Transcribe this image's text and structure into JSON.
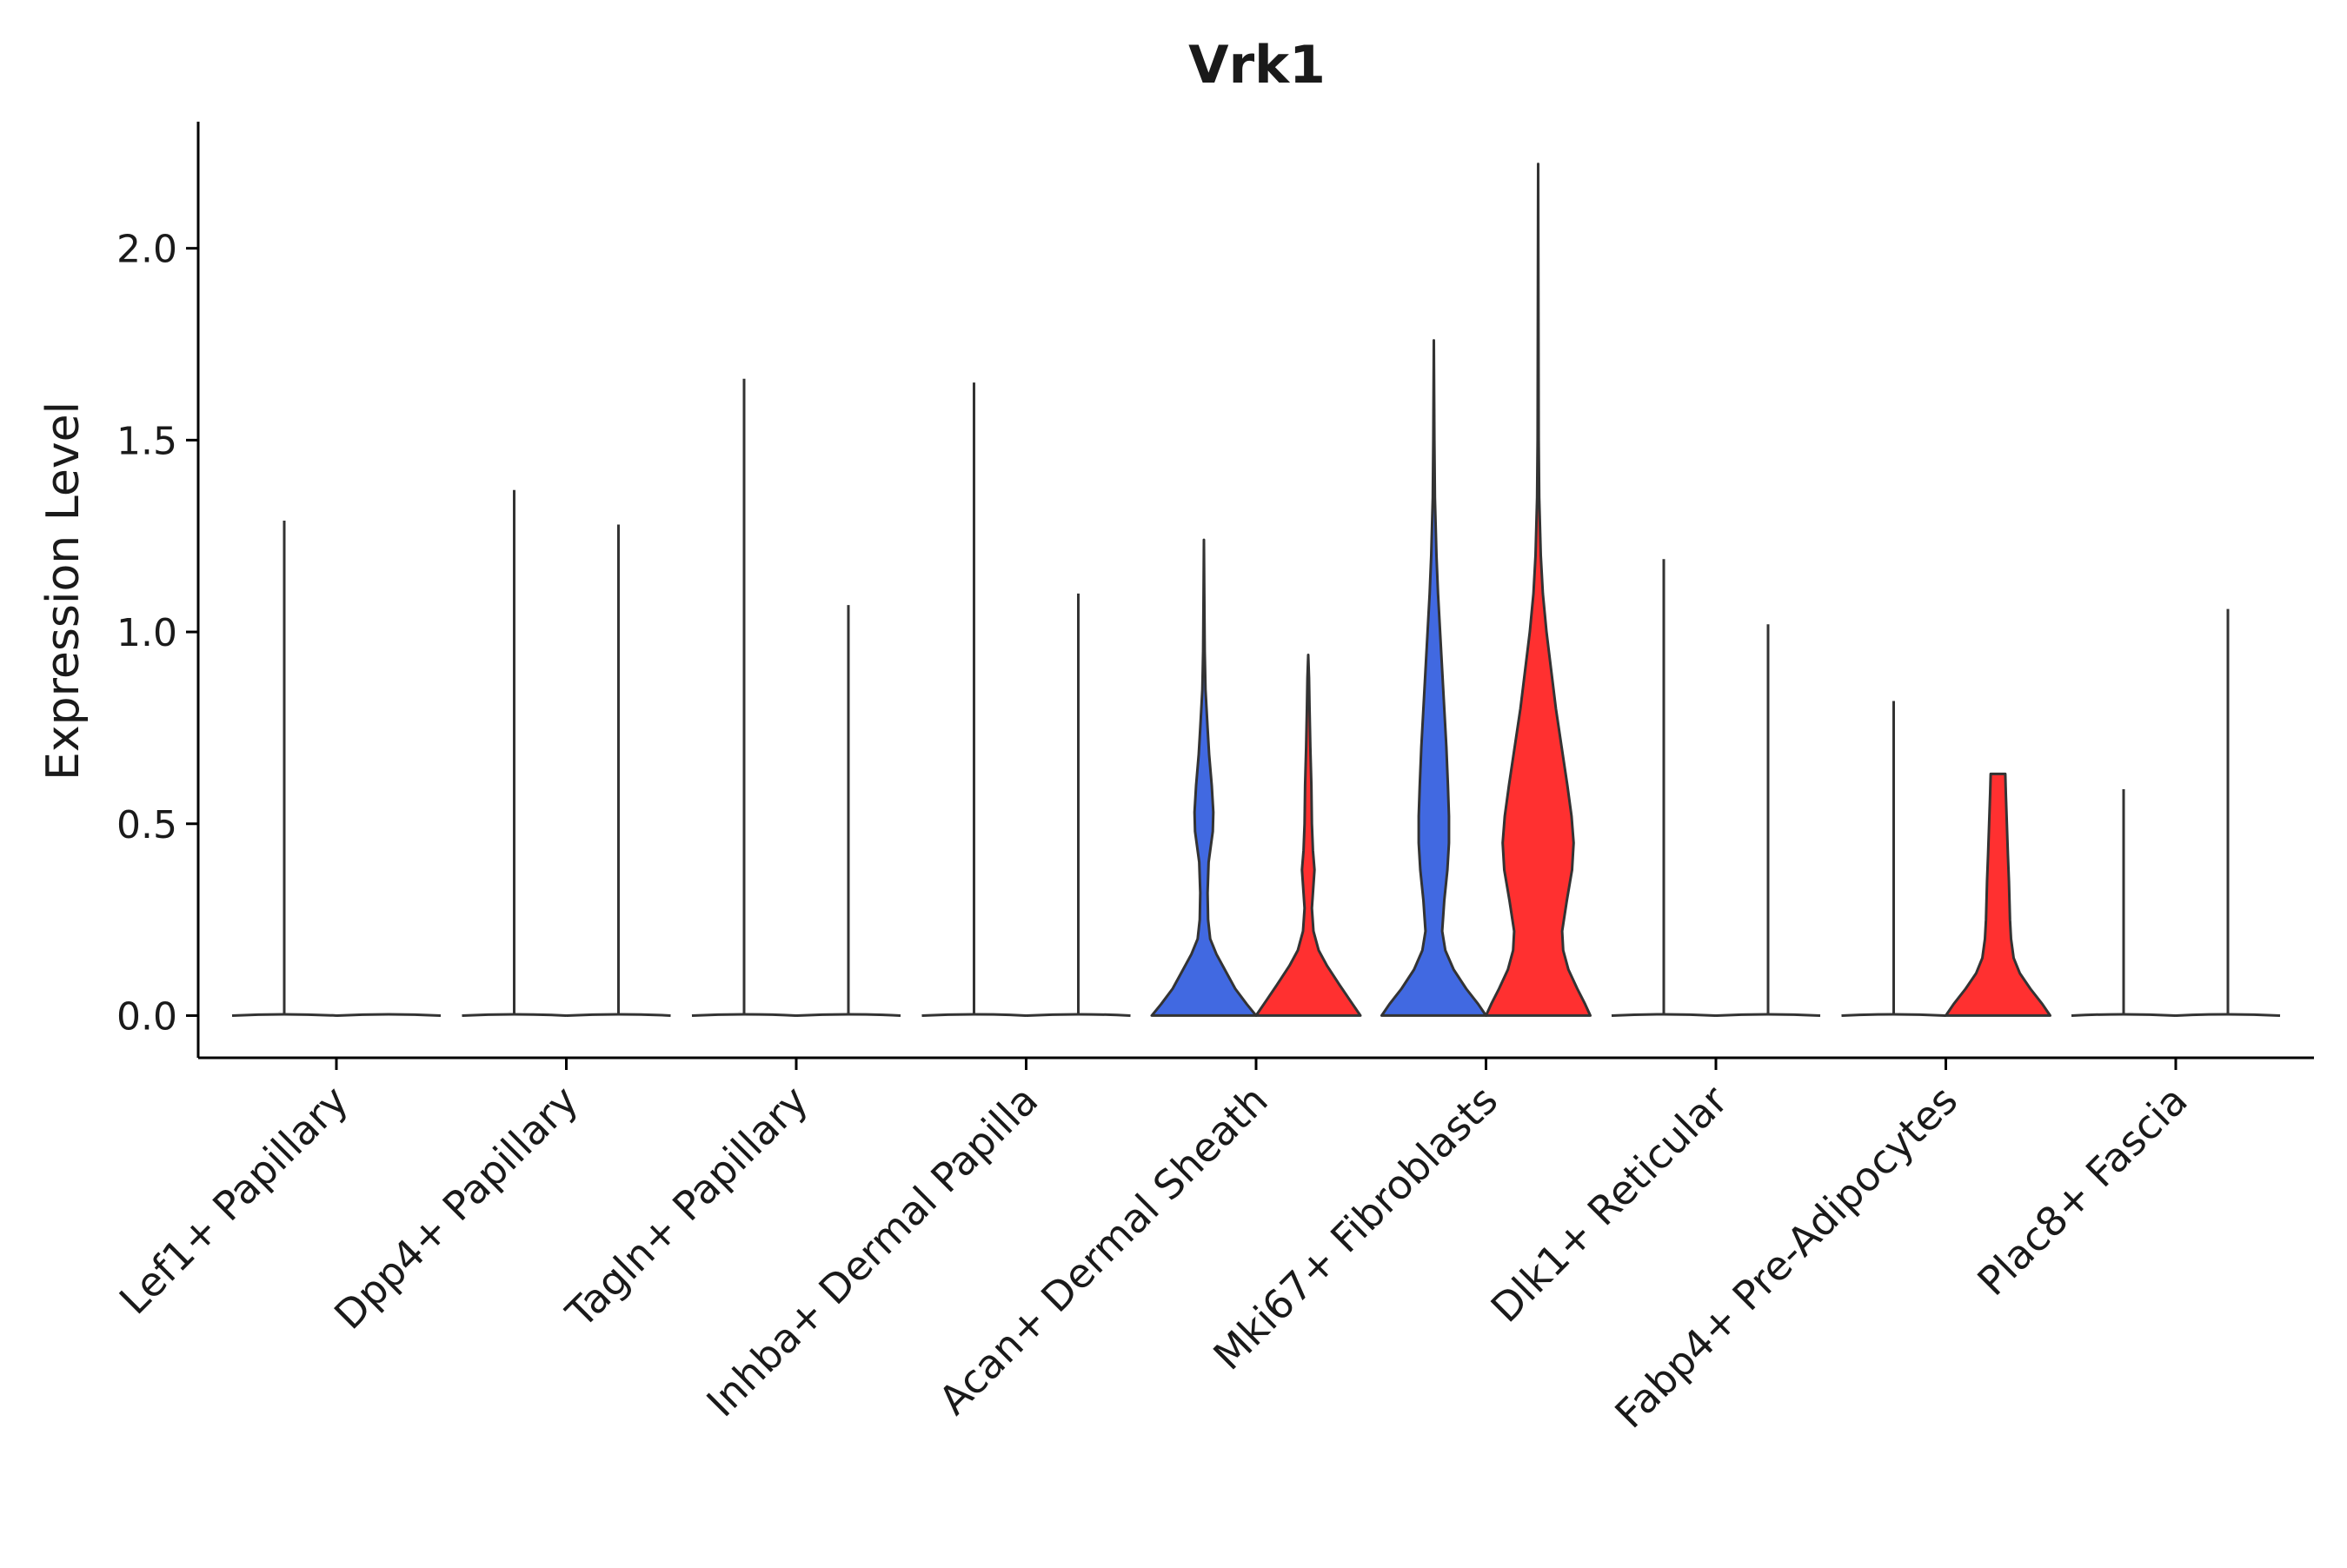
{
  "chart_data": {
    "type": "violin",
    "title": "Vrk1",
    "xlabel": "",
    "ylabel": "Expression Level",
    "ylim": [
      -0.11,
      2.33
    ],
    "yticks": [
      0.0,
      0.5,
      1.0,
      1.5,
      2.0
    ],
    "ytick_labels": [
      "0.0",
      "0.5",
      "1.0",
      "1.5",
      "2.0"
    ],
    "grid": false,
    "legend": "none",
    "colors": {
      "groupA": "#4169E1",
      "groupB": "#FF3030",
      "outline": "#333333",
      "flat": "#333333"
    },
    "categories": [
      "Lef1+ Papillary",
      "Dpp4+ Papillary",
      "Tagln+ Papillary",
      "Inhba+ Dermal Papilla",
      "Acan+ Dermal Sheath",
      "Mki67+ Fibroblasts",
      "Dlk1+ Reticular",
      "Fabp4+ Pre-Adipocytes",
      "Plac8+ Fascia"
    ],
    "violins": [
      {
        "category": 0,
        "side": "left",
        "max": 0.0,
        "fill": "none",
        "spike": 1.29,
        "profile": []
      },
      {
        "category": 0,
        "side": "right",
        "max": 0.0,
        "fill": "none",
        "spike": null,
        "profile": []
      },
      {
        "category": 1,
        "side": "left",
        "max": 0.0,
        "fill": "none",
        "spike": 1.37,
        "profile": []
      },
      {
        "category": 1,
        "side": "right",
        "max": 0.0,
        "fill": "none",
        "spike": 1.28,
        "profile": []
      },
      {
        "category": 2,
        "side": "left",
        "max": 0.0,
        "fill": "none",
        "spike": 1.66,
        "profile": []
      },
      {
        "category": 2,
        "side": "right",
        "max": 0.0,
        "fill": "none",
        "spike": 1.07,
        "profile": []
      },
      {
        "category": 3,
        "side": "left",
        "max": 0.0,
        "fill": "none",
        "spike": 1.65,
        "profile": []
      },
      {
        "category": 3,
        "side": "right",
        "max": 0.0,
        "fill": "none",
        "spike": 1.1,
        "profile": []
      },
      {
        "category": 4,
        "side": "left",
        "max": 1.24,
        "fill": "groupA",
        "spike": null,
        "profile": [
          [
            0.0,
            1.0
          ],
          [
            0.03,
            0.82
          ],
          [
            0.07,
            0.6
          ],
          [
            0.12,
            0.4
          ],
          [
            0.16,
            0.24
          ],
          [
            0.2,
            0.12
          ],
          [
            0.25,
            0.08
          ],
          [
            0.32,
            0.07
          ],
          [
            0.4,
            0.09
          ],
          [
            0.48,
            0.17
          ],
          [
            0.53,
            0.18
          ],
          [
            0.6,
            0.15
          ],
          [
            0.68,
            0.1
          ],
          [
            0.75,
            0.07
          ],
          [
            0.85,
            0.03
          ],
          [
            0.95,
            0.015
          ],
          [
            1.1,
            0.007
          ],
          [
            1.24,
            0.0
          ]
        ]
      },
      {
        "category": 4,
        "side": "right",
        "max": 0.94,
        "fill": "groupB",
        "spike": null,
        "profile": [
          [
            0.0,
            1.0
          ],
          [
            0.04,
            0.8
          ],
          [
            0.08,
            0.6
          ],
          [
            0.13,
            0.36
          ],
          [
            0.17,
            0.2
          ],
          [
            0.22,
            0.1
          ],
          [
            0.28,
            0.07
          ],
          [
            0.34,
            0.1
          ],
          [
            0.38,
            0.12
          ],
          [
            0.43,
            0.09
          ],
          [
            0.5,
            0.07
          ],
          [
            0.6,
            0.06
          ],
          [
            0.7,
            0.04
          ],
          [
            0.8,
            0.025
          ],
          [
            0.88,
            0.015
          ],
          [
            0.94,
            0.0
          ]
        ]
      },
      {
        "category": 5,
        "side": "left",
        "max": 1.76,
        "fill": "groupA",
        "spike": null,
        "profile": [
          [
            0.0,
            1.0
          ],
          [
            0.03,
            0.85
          ],
          [
            0.07,
            0.62
          ],
          [
            0.12,
            0.38
          ],
          [
            0.17,
            0.22
          ],
          [
            0.22,
            0.16
          ],
          [
            0.3,
            0.2
          ],
          [
            0.38,
            0.26
          ],
          [
            0.45,
            0.29
          ],
          [
            0.52,
            0.29
          ],
          [
            0.6,
            0.27
          ],
          [
            0.7,
            0.24
          ],
          [
            0.8,
            0.2
          ],
          [
            0.9,
            0.16
          ],
          [
            1.0,
            0.12
          ],
          [
            1.1,
            0.08
          ],
          [
            1.2,
            0.05
          ],
          [
            1.35,
            0.02
          ],
          [
            1.5,
            0.01
          ],
          [
            1.76,
            0.0
          ]
        ]
      },
      {
        "category": 5,
        "side": "right",
        "max": 2.22,
        "fill": "groupB",
        "spike": null,
        "profile": [
          [
            0.0,
            1.0
          ],
          [
            0.03,
            0.9
          ],
          [
            0.07,
            0.75
          ],
          [
            0.12,
            0.58
          ],
          [
            0.17,
            0.48
          ],
          [
            0.22,
            0.46
          ],
          [
            0.3,
            0.55
          ],
          [
            0.38,
            0.65
          ],
          [
            0.45,
            0.68
          ],
          [
            0.52,
            0.64
          ],
          [
            0.6,
            0.56
          ],
          [
            0.7,
            0.45
          ],
          [
            0.8,
            0.34
          ],
          [
            0.9,
            0.25
          ],
          [
            1.0,
            0.16
          ],
          [
            1.1,
            0.09
          ],
          [
            1.2,
            0.05
          ],
          [
            1.35,
            0.02
          ],
          [
            1.5,
            0.01
          ],
          [
            2.22,
            0.0
          ]
        ]
      },
      {
        "category": 6,
        "side": "left",
        "max": 0.0,
        "fill": "none",
        "spike": 1.19,
        "profile": []
      },
      {
        "category": 6,
        "side": "right",
        "max": 0.0,
        "fill": "none",
        "spike": 1.02,
        "profile": []
      },
      {
        "category": 7,
        "side": "left",
        "max": 0.0,
        "fill": "none",
        "spike": 0.82,
        "profile": []
      },
      {
        "category": 7,
        "side": "right",
        "max": 0.63,
        "fill": "groupB",
        "spike": null,
        "profile": [
          [
            0.0,
            1.0
          ],
          [
            0.03,
            0.85
          ],
          [
            0.07,
            0.62
          ],
          [
            0.11,
            0.42
          ],
          [
            0.15,
            0.3
          ],
          [
            0.2,
            0.25
          ],
          [
            0.25,
            0.23
          ],
          [
            0.3,
            0.22
          ],
          [
            0.35,
            0.21
          ],
          [
            0.42,
            0.19
          ],
          [
            0.5,
            0.17
          ],
          [
            0.58,
            0.15
          ],
          [
            0.63,
            0.14
          ]
        ]
      },
      {
        "category": 8,
        "side": "left",
        "max": 0.0,
        "fill": "none",
        "spike": 0.59,
        "profile": []
      },
      {
        "category": 8,
        "side": "right",
        "max": 0.0,
        "fill": "none",
        "spike": 1.06,
        "profile": []
      }
    ]
  }
}
